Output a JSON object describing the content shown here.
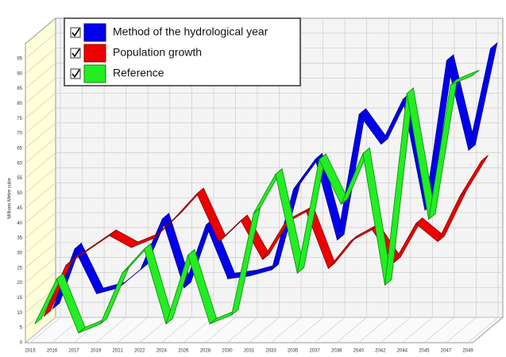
{
  "chart_data": {
    "type": "ribbon3d",
    "y_label": "Millions Mètre cube",
    "categories": [
      "2015",
      "2016",
      "2017",
      "2019",
      "2021",
      "2022",
      "2024",
      "2026",
      "2028",
      "2030",
      "2031",
      "2033",
      "2035",
      "2037",
      "2038",
      "2040",
      "2042",
      "2044",
      "2045",
      "2047",
      "2049"
    ],
    "series": [
      {
        "name": "Method of the hydrological year",
        "color": "#0000ee",
        "values": [
          5,
          25,
          10,
          12,
          18,
          35,
          12,
          33,
          15,
          16,
          18,
          45,
          55,
          28,
          70,
          60,
          75,
          38,
          88,
          58,
          92
        ]
      },
      {
        "name": "Population growth",
        "color": "#ee0000",
        "values": [
          5,
          22,
          27,
          32,
          28,
          31,
          38,
          46,
          30,
          37,
          24,
          36,
          40,
          21,
          30,
          34,
          23,
          36,
          30,
          45,
          57
        ]
      },
      {
        "name": "Reference",
        "color": "#22ee22",
        "values": [
          5,
          20,
          2,
          5,
          22,
          30,
          5,
          28,
          5,
          8,
          42,
          55,
          22,
          60,
          45,
          62,
          18,
          82,
          40,
          85,
          88
        ]
      }
    ],
    "ylim": [
      0,
      100
    ],
    "yticks": [
      0,
      5,
      10,
      15,
      20,
      25,
      30,
      35,
      40,
      45,
      50,
      55,
      60,
      65,
      70,
      75,
      80,
      85,
      90,
      95
    ],
    "grid": true
  }
}
